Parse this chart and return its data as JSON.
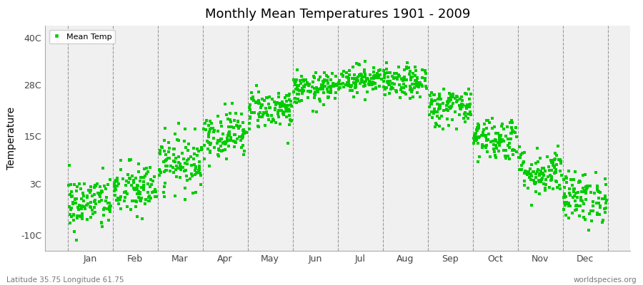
{
  "title": "Monthly Mean Temperatures 1901 - 2009",
  "ylabel": "Temperature",
  "footer_left": "Latitude 35.75 Longitude 61.75",
  "footer_right": "worldspecies.org",
  "legend_label": "Mean Temp",
  "marker_color": "#00cc00",
  "background_color": "#f0f0f0",
  "figure_background": "#ffffff",
  "yticks": [
    -10,
    3,
    15,
    28,
    40
  ],
  "ytick_labels": [
    "-10C",
    "3C",
    "15C",
    "28C",
    "40C"
  ],
  "ylim": [
    -14,
    43
  ],
  "months": [
    "Jan",
    "Feb",
    "Mar",
    "Apr",
    "May",
    "Jun",
    "Jul",
    "Aug",
    "Sep",
    "Oct",
    "Nov",
    "Dec"
  ],
  "monthly_mean_temps": [
    -2.0,
    1.5,
    8.5,
    15.5,
    22.0,
    27.0,
    29.5,
    28.5,
    22.5,
    14.5,
    6.0,
    -0.5
  ],
  "monthly_std_temps": [
    3.5,
    3.5,
    3.5,
    3.0,
    2.5,
    2.0,
    1.8,
    2.0,
    2.5,
    2.8,
    3.0,
    3.2
  ],
  "n_years": 109,
  "seed": 42
}
